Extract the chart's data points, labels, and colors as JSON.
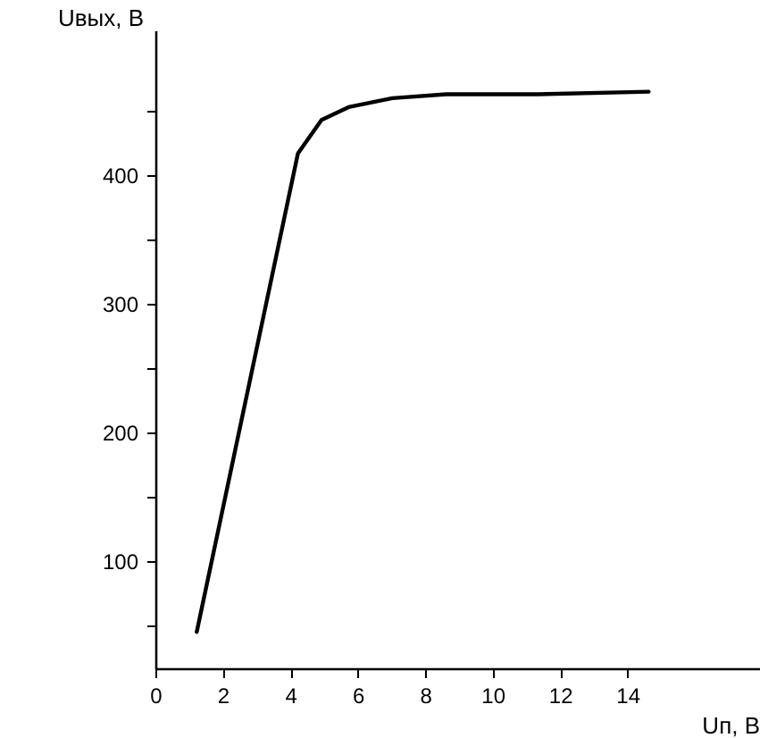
{
  "chart_data": {
    "type": "line",
    "xlabel": "Uп, В",
    "ylabel": "Uвых, В",
    "x": [
      1.2,
      4.2,
      4.9,
      5.7,
      7.0,
      8.6,
      11.3,
      14.6
    ],
    "series": [
      {
        "color": "#000000",
        "values": [
          45,
          417,
          443,
          453,
          460,
          463,
          463,
          465
        ]
      }
    ],
    "xlim": [
      0,
      17.9
    ],
    "ylim": [
      16,
      512
    ],
    "xticks": [
      {
        "value": 0,
        "label": "0"
      },
      2,
      4,
      6,
      8,
      10,
      12,
      14
    ],
    "yticks": [
      {
        "value": 50,
        "label": null
      },
      100,
      {
        "value": 150,
        "label": null
      },
      200,
      {
        "value": 250,
        "label": null
      },
      300,
      {
        "value": 350,
        "label": null
      },
      400,
      {
        "value": 450,
        "label": null
      }
    ],
    "grid": false,
    "marker": "none",
    "line_style": "solid"
  }
}
